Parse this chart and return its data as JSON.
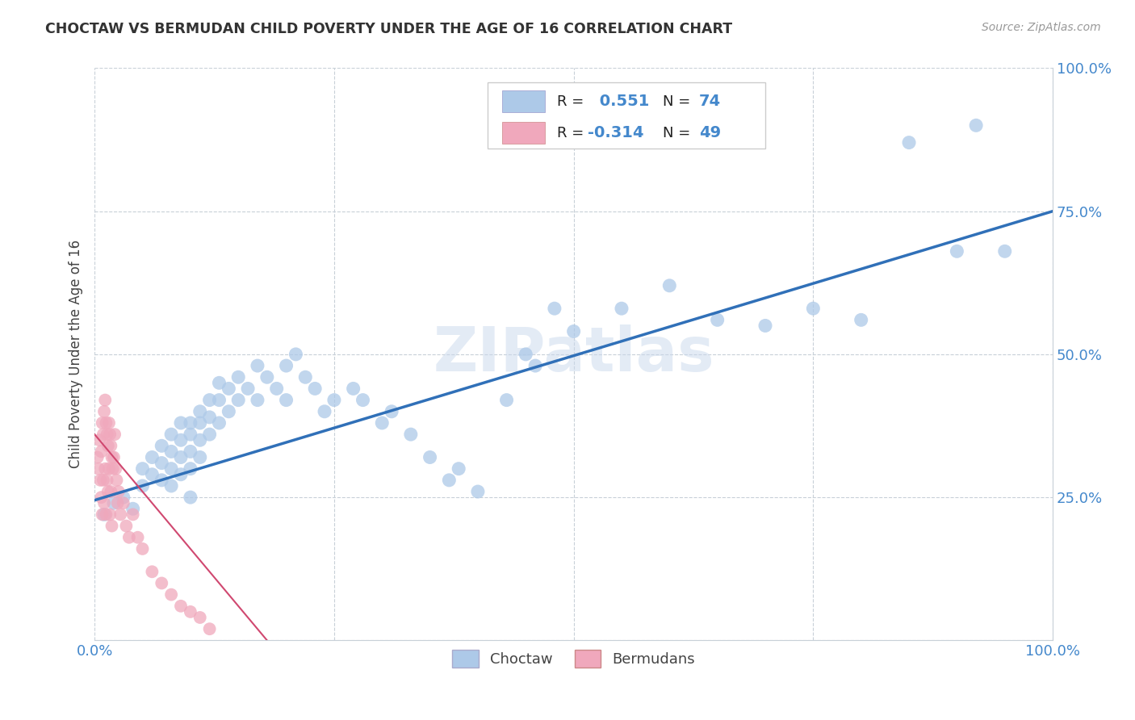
{
  "title": "CHOCTAW VS BERMUDAN CHILD POVERTY UNDER THE AGE OF 16 CORRELATION CHART",
  "source": "Source: ZipAtlas.com",
  "ylabel": "Child Poverty Under the Age of 16",
  "xlim": [
    0.0,
    1.0
  ],
  "ylim": [
    0.0,
    1.0
  ],
  "choctaw_R": 0.551,
  "choctaw_N": 74,
  "bermudan_R": -0.314,
  "bermudan_N": 49,
  "choctaw_color": "#adc9e8",
  "choctaw_line_color": "#3070b8",
  "bermudan_color": "#f0a8bc",
  "bermudan_line_color": "#d04870",
  "watermark": "ZIPatlas",
  "background_color": "#ffffff",
  "grid_color": "#c8d0d8",
  "tick_color": "#4488cc",
  "choctaw_x": [
    0.01,
    0.02,
    0.03,
    0.04,
    0.05,
    0.05,
    0.06,
    0.06,
    0.07,
    0.07,
    0.07,
    0.08,
    0.08,
    0.08,
    0.08,
    0.09,
    0.09,
    0.09,
    0.09,
    0.1,
    0.1,
    0.1,
    0.1,
    0.1,
    0.11,
    0.11,
    0.11,
    0.11,
    0.12,
    0.12,
    0.12,
    0.13,
    0.13,
    0.13,
    0.14,
    0.14,
    0.15,
    0.15,
    0.16,
    0.17,
    0.17,
    0.18,
    0.19,
    0.2,
    0.2,
    0.21,
    0.22,
    0.23,
    0.24,
    0.25,
    0.27,
    0.28,
    0.3,
    0.31,
    0.33,
    0.35,
    0.37,
    0.38,
    0.4,
    0.43,
    0.45,
    0.46,
    0.48,
    0.5,
    0.55,
    0.6,
    0.65,
    0.7,
    0.75,
    0.8,
    0.85,
    0.9,
    0.92,
    0.95
  ],
  "choctaw_y": [
    0.22,
    0.24,
    0.25,
    0.23,
    0.27,
    0.3,
    0.29,
    0.32,
    0.28,
    0.31,
    0.34,
    0.3,
    0.33,
    0.36,
    0.27,
    0.32,
    0.35,
    0.38,
    0.29,
    0.3,
    0.33,
    0.36,
    0.38,
    0.25,
    0.35,
    0.38,
    0.4,
    0.32,
    0.36,
    0.39,
    0.42,
    0.38,
    0.42,
    0.45,
    0.4,
    0.44,
    0.42,
    0.46,
    0.44,
    0.48,
    0.42,
    0.46,
    0.44,
    0.48,
    0.42,
    0.5,
    0.46,
    0.44,
    0.4,
    0.42,
    0.44,
    0.42,
    0.38,
    0.4,
    0.36,
    0.32,
    0.28,
    0.3,
    0.26,
    0.42,
    0.5,
    0.48,
    0.58,
    0.54,
    0.58,
    0.62,
    0.56,
    0.55,
    0.58,
    0.56,
    0.87,
    0.68,
    0.9,
    0.68
  ],
  "bermudan_x": [
    0.003,
    0.004,
    0.005,
    0.006,
    0.007,
    0.007,
    0.008,
    0.008,
    0.009,
    0.009,
    0.01,
    0.01,
    0.011,
    0.011,
    0.012,
    0.012,
    0.013,
    0.013,
    0.014,
    0.014,
    0.015,
    0.015,
    0.016,
    0.016,
    0.017,
    0.017,
    0.018,
    0.018,
    0.019,
    0.02,
    0.021,
    0.022,
    0.023,
    0.024,
    0.025,
    0.027,
    0.03,
    0.033,
    0.036,
    0.04,
    0.045,
    0.05,
    0.06,
    0.07,
    0.08,
    0.09,
    0.1,
    0.11,
    0.12
  ],
  "bermudan_y": [
    0.32,
    0.3,
    0.35,
    0.28,
    0.33,
    0.25,
    0.38,
    0.22,
    0.36,
    0.28,
    0.4,
    0.24,
    0.42,
    0.3,
    0.38,
    0.22,
    0.36,
    0.28,
    0.34,
    0.26,
    0.38,
    0.3,
    0.36,
    0.22,
    0.34,
    0.26,
    0.32,
    0.2,
    0.3,
    0.32,
    0.36,
    0.3,
    0.28,
    0.24,
    0.26,
    0.22,
    0.24,
    0.2,
    0.18,
    0.22,
    0.18,
    0.16,
    0.12,
    0.1,
    0.08,
    0.06,
    0.05,
    0.04,
    0.02
  ],
  "choctaw_line_x0": 0.0,
  "choctaw_line_y0": 0.245,
  "choctaw_line_x1": 1.0,
  "choctaw_line_y1": 0.75,
  "bermudan_line_x0": 0.0,
  "bermudan_line_y0": 0.36,
  "bermudan_line_x1": 0.18,
  "bermudan_line_y1": 0.0
}
